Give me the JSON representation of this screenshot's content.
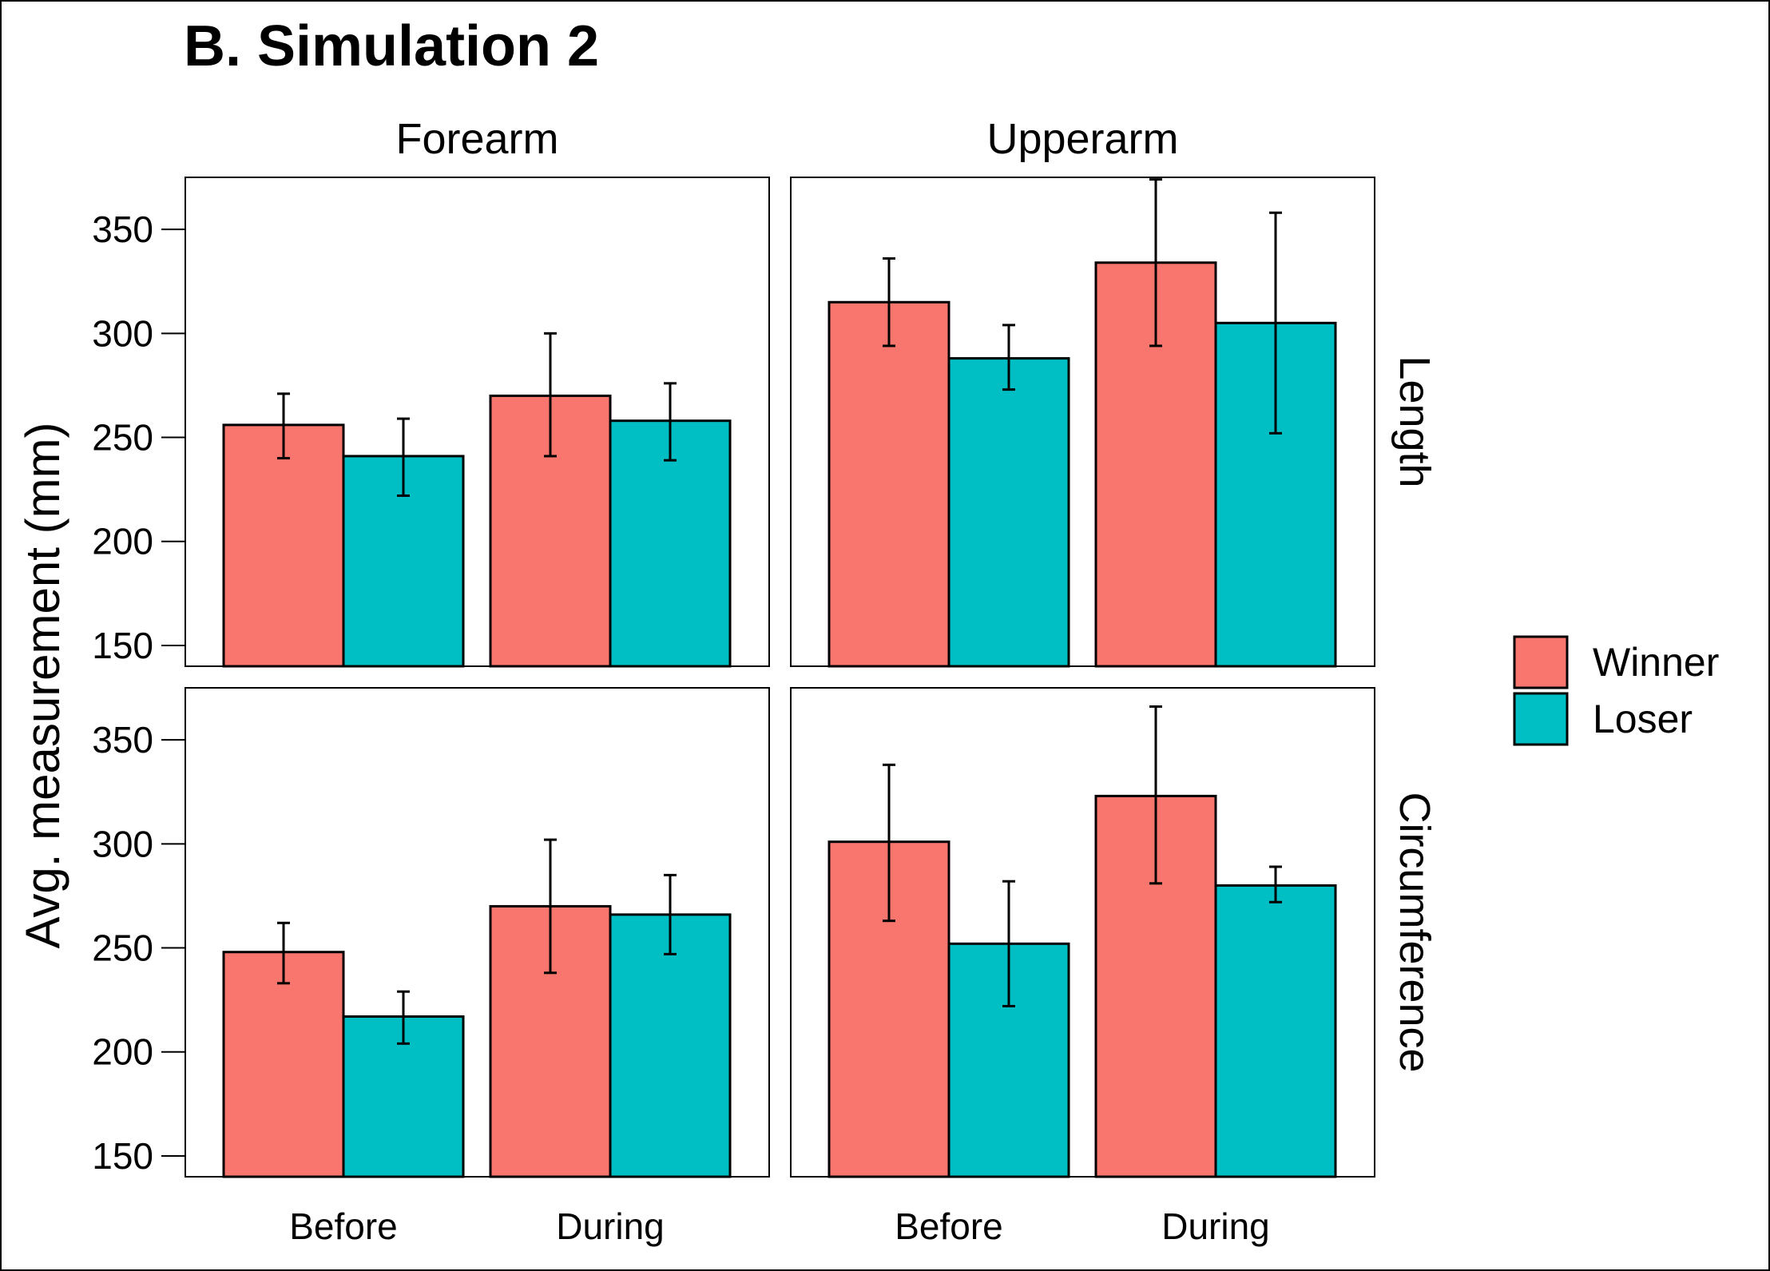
{
  "chart_data": {
    "type": "bar",
    "title": "B. Simulation 2",
    "ylabel": "Avg. measurement (mm)",
    "xlabel": "",
    "ylim": [
      140,
      375
    ],
    "yticks": [
      150,
      200,
      250,
      300,
      350
    ],
    "categories": [
      "Before",
      "During"
    ],
    "column_facets": [
      "Forearm",
      "Upperarm"
    ],
    "row_facets": [
      "Length",
      "Circumference"
    ],
    "legend": {
      "position": "right",
      "entries": [
        "Winner",
        "Loser"
      ]
    },
    "series_colors": {
      "Winner": "#F8766D",
      "Loser": "#00BFC4"
    },
    "grid": false,
    "panels": [
      {
        "column": "Forearm",
        "row": "Length",
        "series": [
          {
            "name": "Winner",
            "values": [
              256,
              270
            ],
            "err_low": [
              240,
              241
            ],
            "err_high": [
              271,
              300
            ]
          },
          {
            "name": "Loser",
            "values": [
              241,
              258
            ],
            "err_low": [
              222,
              239
            ],
            "err_high": [
              259,
              276
            ]
          }
        ]
      },
      {
        "column": "Upperarm",
        "row": "Length",
        "series": [
          {
            "name": "Winner",
            "values": [
              315,
              334
            ],
            "err_low": [
              294,
              294
            ],
            "err_high": [
              336,
              374
            ]
          },
          {
            "name": "Loser",
            "values": [
              288,
              305
            ],
            "err_low": [
              273,
              252
            ],
            "err_high": [
              304,
              358
            ]
          }
        ]
      },
      {
        "column": "Forearm",
        "row": "Circumference",
        "series": [
          {
            "name": "Winner",
            "values": [
              248,
              270
            ],
            "err_low": [
              233,
              238
            ],
            "err_high": [
              262,
              302
            ]
          },
          {
            "name": "Loser",
            "values": [
              217,
              266
            ],
            "err_low": [
              204,
              247
            ],
            "err_high": [
              229,
              285
            ]
          }
        ]
      },
      {
        "column": "Upperarm",
        "row": "Circumference",
        "series": [
          {
            "name": "Winner",
            "values": [
              301,
              323
            ],
            "err_low": [
              263,
              281
            ],
            "err_high": [
              338,
              366
            ]
          },
          {
            "name": "Loser",
            "values": [
              252,
              280
            ],
            "err_low": [
              222,
              272
            ],
            "err_high": [
              282,
              289
            ]
          }
        ]
      }
    ]
  }
}
